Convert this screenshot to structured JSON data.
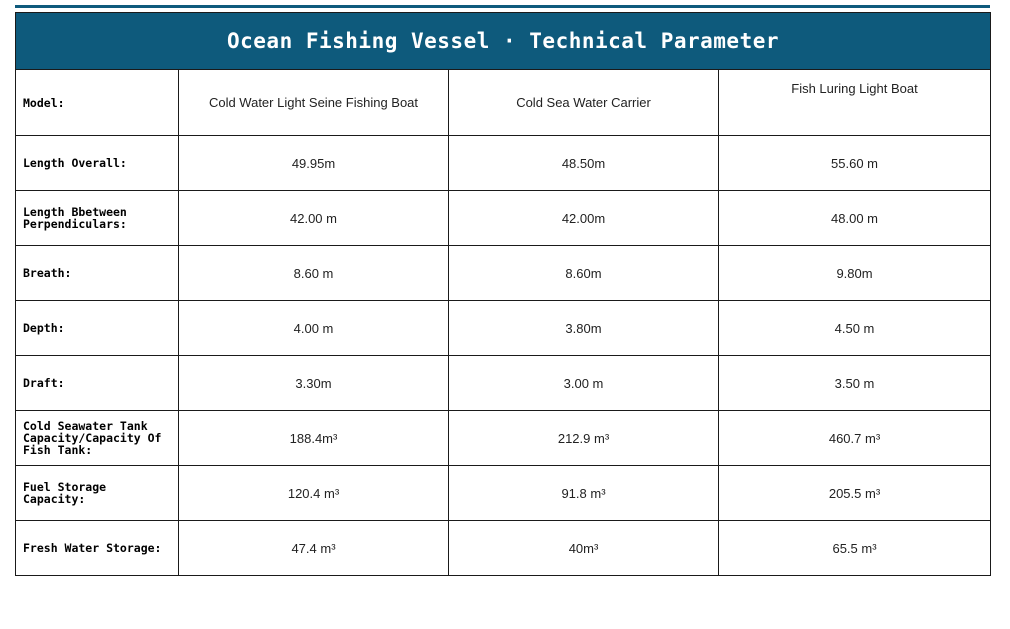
{
  "title": "Ocean Fishing Vessel · Technical Parameter",
  "rows": [
    {
      "label": "Model:",
      "values": [
        "Cold Water Light Seine Fishing Boat",
        "Cold Sea Water Carrier",
        "Fish Luring Light Boat"
      ]
    },
    {
      "label": "Length Overall:",
      "values": [
        "49.95m",
        "48.50m",
        "55.60 m"
      ]
    },
    {
      "label": "Length Bbetween Perpendiculars:",
      "values": [
        "42.00 m",
        "42.00m",
        "48.00 m"
      ]
    },
    {
      "label": "Breath:",
      "values": [
        "8.60 m",
        "8.60m",
        "9.80m"
      ]
    },
    {
      "label": "Depth:",
      "values": [
        "4.00 m",
        "3.80m",
        "4.50 m"
      ]
    },
    {
      "label": "Draft:",
      "values": [
        "3.30m",
        "3.00 m",
        "3.50 m"
      ]
    },
    {
      "label": "Cold Seawater Tank Capacity/Capacity Of Fish Tank:",
      "values": [
        "188.4m³",
        "212.9 m³",
        "460.7 m³"
      ]
    },
    {
      "label": "Fuel Storage Capacity:",
      "values": [
        "120.4 m³",
        "91.8 m³",
        "205.5 m³"
      ]
    },
    {
      "label": "Fresh Water Storage:",
      "values": [
        "47.4 m³",
        "40m³",
        "65.5 m³"
      ]
    }
  ],
  "colors": {
    "header_bg": "#0e5a7c",
    "header_text": "#ffffff",
    "border": "#1a1a1a"
  }
}
